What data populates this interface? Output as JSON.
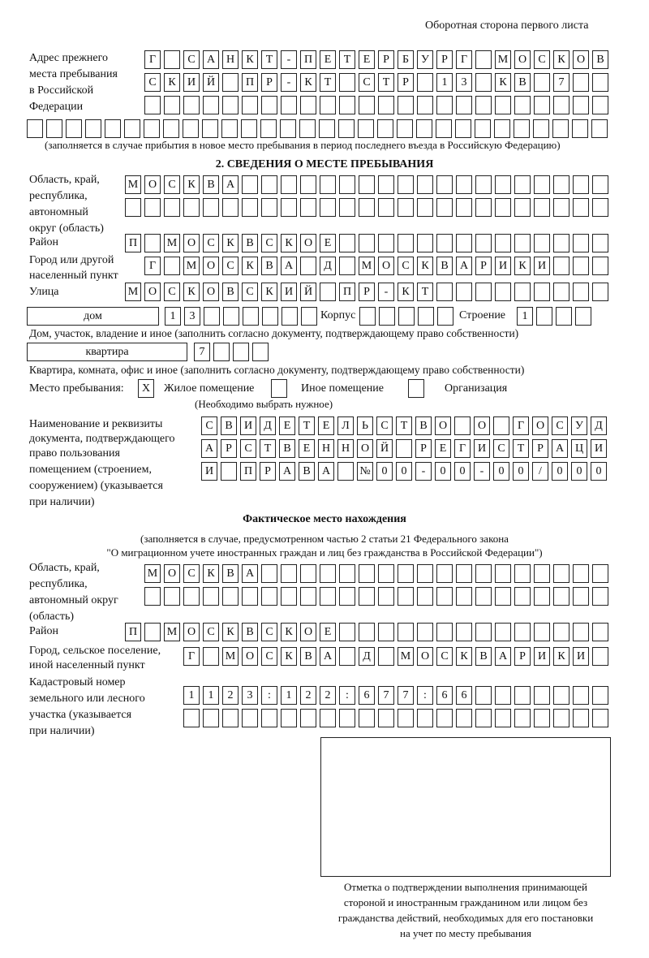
{
  "header": "Оборотная сторона первого листа",
  "prev_address": {
    "label": [
      "Адрес прежнего",
      "места пребывания",
      "в Российской",
      "Федерации"
    ],
    "rows": [
      "Г САНКТ-ПЕТЕРБУРГ МОСКОВ",
      "СКИЙ ПР-КТ СТР 13 КВ 7",
      "",
      ""
    ],
    "note": "(заполняется в случае прибытия в новое место пребывания в период последнего въезда в Российскую Федерацию)"
  },
  "section2": {
    "title": "2. СВЕДЕНИЯ О МЕСТЕ ПРЕБЫВАНИЯ",
    "region_label": [
      "Область, край,",
      "республика,",
      "автономный",
      "округ (область)"
    ],
    "region_rows": [
      "МОСКВА",
      ""
    ],
    "district_label": "Район",
    "district": "П МОСКВСКОЕ",
    "city_label": [
      "Город или другой",
      "населенный пункт"
    ],
    "city": "Г МОСКВА Д МОСКВАРИКИ",
    "street_label": "Улица",
    "street": "МОСКОВСКИЙ ПР-КТ",
    "house_type": "дом",
    "house": "13",
    "building_label": "Корпус",
    "building": "",
    "structure_label": "Строение",
    "structure": "1",
    "house_note": "Дом, участок, владение и иное (заполнить согласно документу, подтверждающему право собственности)",
    "apt_type": "квартира",
    "apt": "7",
    "apt_note": "Квартира, комната, офис и иное (заполнить согласно документу, подтверждающему право собственности)",
    "place_label": "Место пребывания:",
    "options": [
      {
        "label": "Жилое помещение",
        "mark": "X"
      },
      {
        "label": "Иное помещение",
        "mark": ""
      },
      {
        "label": "Организация",
        "mark": ""
      }
    ],
    "choose_note": "(Необходимо выбрать нужное)",
    "doc_label": [
      "Наименование и реквизиты",
      "документа, подтверждающего",
      "право пользования",
      "помещением (строением,",
      "сооружением) (указывается",
      "при наличии)"
    ],
    "doc_rows": [
      "СВИДЕТЕЛЬСТВО О ГОСУД",
      "АРСТВЕННОЙ РЕГИСТРАЦИ",
      "И ПРАВА №00-00-00/000"
    ]
  },
  "actual": {
    "title": "Фактическое место нахождения",
    "subtitle": [
      "(заполняется в случае, предусмотренном частью 2 статьи 21 Федерального закона",
      "\"О миграционном учете иностранных граждан и лиц без гражданства в Российской Федерации\")"
    ],
    "region_label": [
      "Область, край,",
      "республика,",
      "автономный округ",
      "(область)"
    ],
    "region_rows": [
      "МОСКВА",
      ""
    ],
    "district_label": "Район",
    "district": "П МОСКВСКОЕ",
    "city_label": [
      "Город, сельское поселение,",
      "иной населенный пункт"
    ],
    "city": "Г МОСКВА Д МОСКВАРИКИ",
    "cadastre_label": [
      "Кадастровый номер",
      "земельного или лесного",
      "участка (указывается",
      "при наличии)"
    ],
    "cadastre_rows": [
      "1123:122:677:66",
      ""
    ]
  },
  "stamp_caption": [
    "Отметка о подтверждении выполнения принимающей",
    "стороной и иностранным гражданином или лицом без",
    "гражданства действий, необходимых для его постановки",
    "на учет по месту пребывания"
  ]
}
